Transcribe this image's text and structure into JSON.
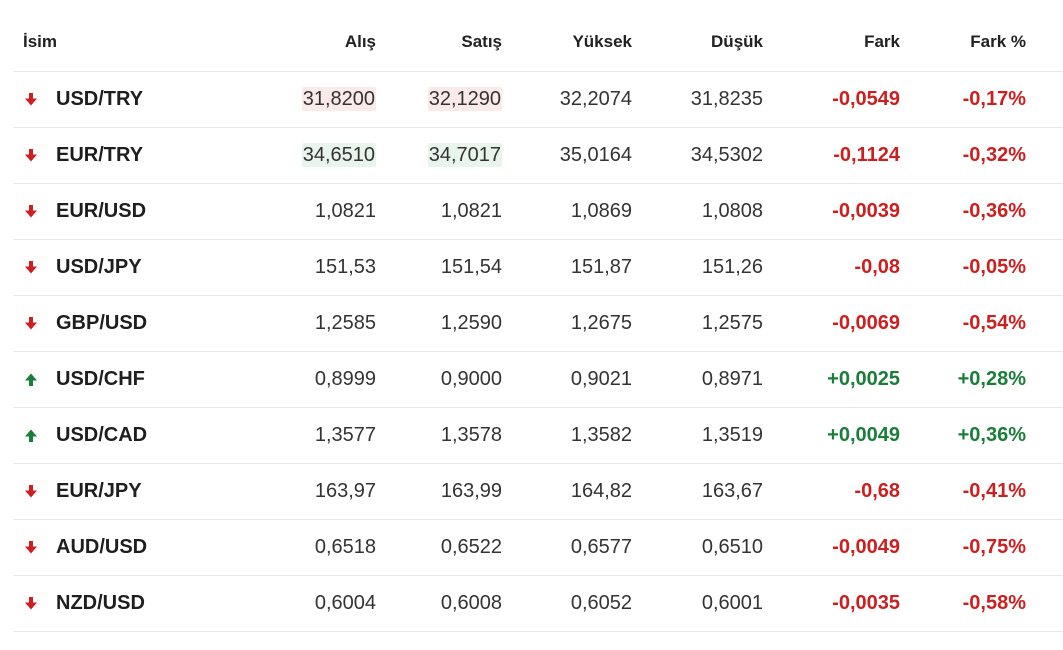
{
  "headers": {
    "name": "İsim",
    "bid": "Alış",
    "ask": "Satış",
    "high": "Yüksek",
    "low": "Düşük",
    "change": "Fark",
    "change_pct": "Fark %"
  },
  "colors": {
    "down": "#cc1f1f",
    "up": "#1a7d3a",
    "highlight_down": "#fbeaea",
    "highlight_up": "#e8f5ec"
  },
  "rows": [
    {
      "pair": "USD/TRY",
      "direction": "down",
      "direction_icon": "arrow-down-icon",
      "bid": "31,8200",
      "ask": "32,1290",
      "high": "32,2074",
      "low": "31,8235",
      "change": "-0,0549",
      "change_pct": "-0,17%",
      "highlight": "down"
    },
    {
      "pair": "EUR/TRY",
      "direction": "down",
      "direction_icon": "arrow-down-icon",
      "bid": "34,6510",
      "ask": "34,7017",
      "high": "35,0164",
      "low": "34,5302",
      "change": "-0,1124",
      "change_pct": "-0,32%",
      "highlight": "up"
    },
    {
      "pair": "EUR/USD",
      "direction": "down",
      "direction_icon": "arrow-down-icon",
      "bid": "1,0821",
      "ask": "1,0821",
      "high": "1,0869",
      "low": "1,0808",
      "change": "-0,0039",
      "change_pct": "-0,36%",
      "highlight": ""
    },
    {
      "pair": "USD/JPY",
      "direction": "down",
      "direction_icon": "arrow-down-icon",
      "bid": "151,53",
      "ask": "151,54",
      "high": "151,87",
      "low": "151,26",
      "change": "-0,08",
      "change_pct": "-0,05%",
      "highlight": ""
    },
    {
      "pair": "GBP/USD",
      "direction": "down",
      "direction_icon": "arrow-down-icon",
      "bid": "1,2585",
      "ask": "1,2590",
      "high": "1,2675",
      "low": "1,2575",
      "change": "-0,0069",
      "change_pct": "-0,54%",
      "highlight": ""
    },
    {
      "pair": "USD/CHF",
      "direction": "up",
      "direction_icon": "arrow-up-icon",
      "bid": "0,8999",
      "ask": "0,9000",
      "high": "0,9021",
      "low": "0,8971",
      "change": "+0,0025",
      "change_pct": "+0,28%",
      "highlight": ""
    },
    {
      "pair": "USD/CAD",
      "direction": "up",
      "direction_icon": "arrow-up-icon",
      "bid": "1,3577",
      "ask": "1,3578",
      "high": "1,3582",
      "low": "1,3519",
      "change": "+0,0049",
      "change_pct": "+0,36%",
      "highlight": ""
    },
    {
      "pair": "EUR/JPY",
      "direction": "down",
      "direction_icon": "arrow-down-icon",
      "bid": "163,97",
      "ask": "163,99",
      "high": "164,82",
      "low": "163,67",
      "change": "-0,68",
      "change_pct": "-0,41%",
      "highlight": ""
    },
    {
      "pair": "AUD/USD",
      "direction": "down",
      "direction_icon": "arrow-down-icon",
      "bid": "0,6518",
      "ask": "0,6522",
      "high": "0,6577",
      "low": "0,6510",
      "change": "-0,0049",
      "change_pct": "-0,75%",
      "highlight": ""
    },
    {
      "pair": "NZD/USD",
      "direction": "down",
      "direction_icon": "arrow-down-icon",
      "bid": "0,6004",
      "ask": "0,6008",
      "high": "0,6052",
      "low": "0,6001",
      "change": "-0,0035",
      "change_pct": "-0,58%",
      "highlight": ""
    }
  ]
}
